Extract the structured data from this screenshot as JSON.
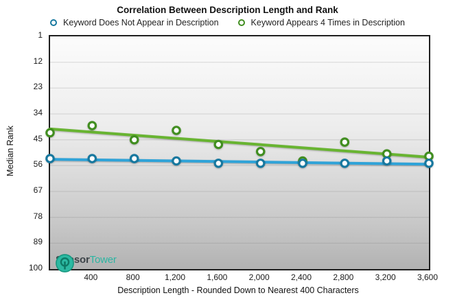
{
  "title": "Correlation Between Description Length and Rank",
  "legend": {
    "items": [
      {
        "label": "Keyword Does Not Appear in Description",
        "color": "#17789f"
      },
      {
        "label": "Keyword Appears 4 Times in Description",
        "color": "#418e20"
      }
    ]
  },
  "axes": {
    "xlabel": "Description Length - Rounded Down to Nearest 400 Characters",
    "ylabel": "Median Rank"
  },
  "logo": {
    "part1": "Sensor",
    "part2": "Tower",
    "icon_color": "#2cb9a2"
  },
  "chart_data": {
    "type": "scatter",
    "title": "Correlation Between Description Length and Rank",
    "xlabel": "Description Length - Rounded Down to Nearest 400 Characters",
    "ylabel": "Median Rank",
    "xlim": [
      0,
      3600
    ],
    "ylim": [
      1,
      100
    ],
    "y_axis_inverted_rank": true,
    "grid": true,
    "legend_position": "top",
    "x": [
      0,
      400,
      800,
      1200,
      1600,
      2000,
      2400,
      2800,
      3200,
      3600
    ],
    "x_tick_values": [
      400,
      800,
      1200,
      1600,
      2000,
      2400,
      2800,
      3200,
      3600
    ],
    "x_tick_labels": [
      "400",
      "800",
      "1,200",
      "1,600",
      "2,000",
      "2,400",
      "2,800",
      "3,200",
      "3,600"
    ],
    "y_tick_values": [
      1,
      12,
      23,
      34,
      45,
      56,
      67,
      78,
      89,
      100
    ],
    "y_tick_labels": [
      "1",
      "12",
      "23",
      "34",
      "45",
      "56",
      "67",
      "78",
      "89",
      "100"
    ],
    "series": [
      {
        "name": "Keyword Does Not Appear in Description",
        "marker_color": "#17789f",
        "line_color": "#2fa3d8",
        "values": [
          53,
          53,
          53,
          54,
          55,
          55,
          55,
          55,
          54,
          55
        ],
        "trendline": {
          "start_rank": 53.3,
          "end_rank": 55.4
        }
      },
      {
        "name": "Keyword Appears 4 Times in Description",
        "marker_color": "#418e20",
        "line_color": "#68b431",
        "values": [
          42,
          39,
          45,
          41,
          47,
          50,
          54,
          46,
          51,
          52
        ],
        "trendline": {
          "start_rank": 40.4,
          "end_rank": 52.4
        }
      }
    ]
  }
}
